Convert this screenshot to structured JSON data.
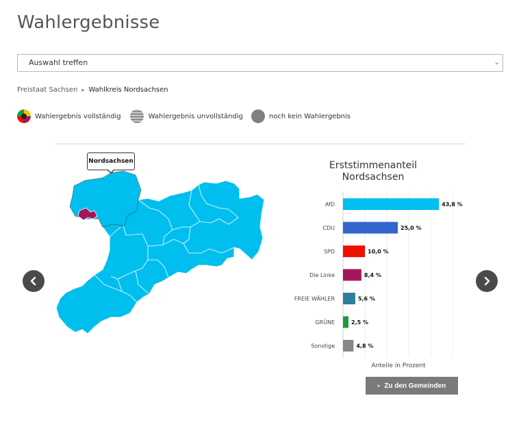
{
  "page": {
    "title": "Wahlergebnisse"
  },
  "select": {
    "value": "Auswahl treffen",
    "chevron_icon": "chevron-down-icon"
  },
  "breadcrumb": {
    "root": "Freistaat Sachsen",
    "current": "Wahlkreis Nordsachsen"
  },
  "legend": {
    "complete": "Wahlergebnis vollständig",
    "incomplete": "Wahlergebnis unvollständig",
    "none": "noch kein Wahlergebnis"
  },
  "map": {
    "tooltip": "Nordsachsen",
    "region_color": "#00bfee",
    "selected_color": "#a3175a"
  },
  "nav": {
    "prev_icon": "chevron-left-icon",
    "next_icon": "chevron-right-icon"
  },
  "chart_data": {
    "type": "bar",
    "title": "Erststimmenanteil Nordsachsen",
    "xlabel": "Anteile in Prozent",
    "categories": [
      "AfD",
      "CDU",
      "SPD",
      "Die Linke",
      "FREIE WÄHLER",
      "GRÜNE",
      "Sonstige"
    ],
    "values": [
      43.8,
      25.0,
      10.0,
      8.4,
      5.6,
      2.5,
      4.8
    ],
    "value_labels": [
      "43,8 %",
      "25,0 %",
      "10,0 %",
      "8,4 %",
      "5,6 %",
      "2,5 %",
      "4,8 %"
    ],
    "colors": [
      "#00bfee",
      "#3366cc",
      "#ee1100",
      "#a3175a",
      "#2e7f9a",
      "#1a9c3e",
      "#888888"
    ],
    "xlim": [
      0,
      50
    ]
  },
  "cta": {
    "label": "Zu den Gemeinden"
  }
}
